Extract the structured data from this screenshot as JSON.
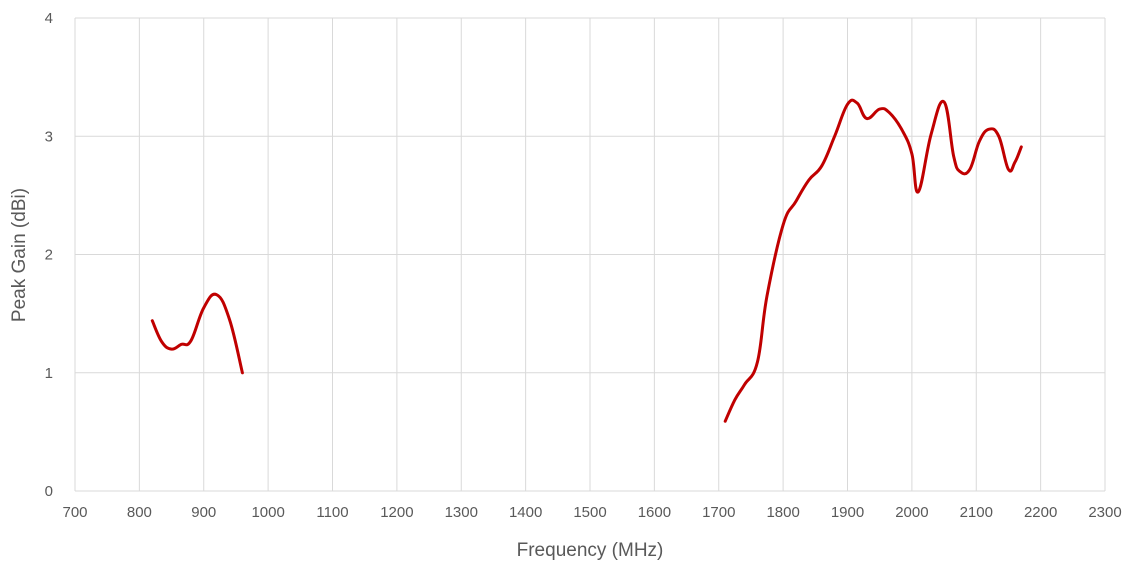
{
  "chart_data": {
    "type": "line",
    "title": "",
    "xlabel": "Frequency (MHz)",
    "ylabel": "Peak Gain (dBi)",
    "xlim": [
      700,
      2300
    ],
    "ylim": [
      0,
      4
    ],
    "x_ticks": [
      "700",
      "800",
      "900",
      "1000",
      "1100",
      "1200",
      "1300",
      "1400",
      "1500",
      "1600",
      "1700",
      "1800",
      "1900",
      "2000",
      "2100",
      "2200",
      "2300"
    ],
    "y_ticks": [
      "0",
      "1",
      "2",
      "3",
      "4"
    ],
    "grid": "vertical and horizontal",
    "legend": "none",
    "color": "#C00000",
    "series": [
      {
        "segments": [
          [
            [
              820,
              1.44
            ],
            [
              835,
              1.26
            ],
            [
              850,
              1.2
            ],
            [
              865,
              1.24
            ],
            [
              880,
              1.27
            ],
            [
              900,
              1.55
            ],
            [
              920,
              1.66
            ],
            [
              940,
              1.45
            ],
            [
              960,
              1.0
            ]
          ],
          [
            [
              1710,
              0.59
            ],
            [
              1725,
              0.77
            ],
            [
              1740,
              0.9
            ],
            [
              1760,
              1.09
            ],
            [
              1775,
              1.65
            ],
            [
              1800,
              2.25
            ],
            [
              1820,
              2.45
            ],
            [
              1840,
              2.63
            ],
            [
              1860,
              2.75
            ],
            [
              1880,
              3.0
            ],
            [
              1900,
              3.27
            ],
            [
              1915,
              3.28
            ],
            [
              1930,
              3.15
            ],
            [
              1950,
              3.23
            ],
            [
              1965,
              3.2
            ],
            [
              1985,
              3.05
            ],
            [
              2000,
              2.85
            ],
            [
              2010,
              2.53
            ],
            [
              2030,
              3.02
            ],
            [
              2050,
              3.29
            ],
            [
              2065,
              2.83
            ],
            [
              2075,
              2.7
            ],
            [
              2090,
              2.72
            ],
            [
              2105,
              2.96
            ],
            [
              2120,
              3.06
            ],
            [
              2135,
              3.0
            ],
            [
              2150,
              2.72
            ],
            [
              2160,
              2.78
            ],
            [
              2170,
              2.91
            ]
          ]
        ]
      }
    ]
  }
}
